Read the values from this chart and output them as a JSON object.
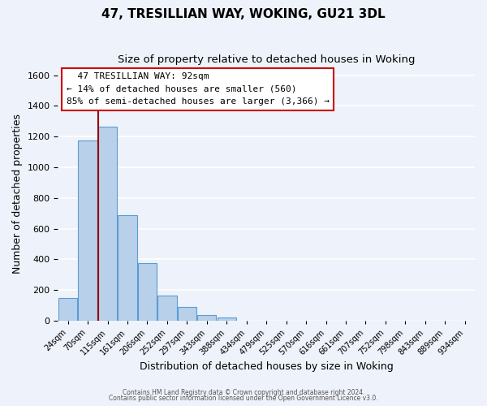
{
  "title": "47, TRESILLIAN WAY, WOKING, GU21 3DL",
  "subtitle": "Size of property relative to detached houses in Woking",
  "xlabel": "Distribution of detached houses by size in Woking",
  "ylabel": "Number of detached properties",
  "bar_labels": [
    "24sqm",
    "70sqm",
    "115sqm",
    "161sqm",
    "206sqm",
    "252sqm",
    "297sqm",
    "343sqm",
    "388sqm",
    "434sqm",
    "479sqm",
    "525sqm",
    "570sqm",
    "616sqm",
    "661sqm",
    "707sqm",
    "752sqm",
    "798sqm",
    "843sqm",
    "889sqm",
    "934sqm"
  ],
  "bar_heights": [
    150,
    1175,
    1265,
    685,
    375,
    165,
    90,
    35,
    20,
    0,
    0,
    0,
    0,
    0,
    0,
    0,
    0,
    0,
    0,
    0,
    0
  ],
  "bar_color": "#b8d0ea",
  "bar_edge_color": "#5b9bd5",
  "ylim": [
    0,
    1650
  ],
  "yticks": [
    0,
    200,
    400,
    600,
    800,
    1000,
    1200,
    1400,
    1600
  ],
  "vline_position": 1.52,
  "property_line_label": "47 TRESILLIAN WAY: 92sqm",
  "annotation_line1": "← 14% of detached houses are smaller (560)",
  "annotation_line2": "85% of semi-detached houses are larger (3,366) →",
  "annotation_box_color": "#ffffff",
  "annotation_box_edge": "#cc0000",
  "vline_color": "#990000",
  "footer1": "Contains HM Land Registry data © Crown copyright and database right 2024.",
  "footer2": "Contains public sector information licensed under the Open Government Licence v3.0.",
  "bg_color": "#eef2fa",
  "grid_color": "#ffffff",
  "title_fontsize": 11,
  "subtitle_fontsize": 9.5,
  "axis_label_fontsize": 9
}
